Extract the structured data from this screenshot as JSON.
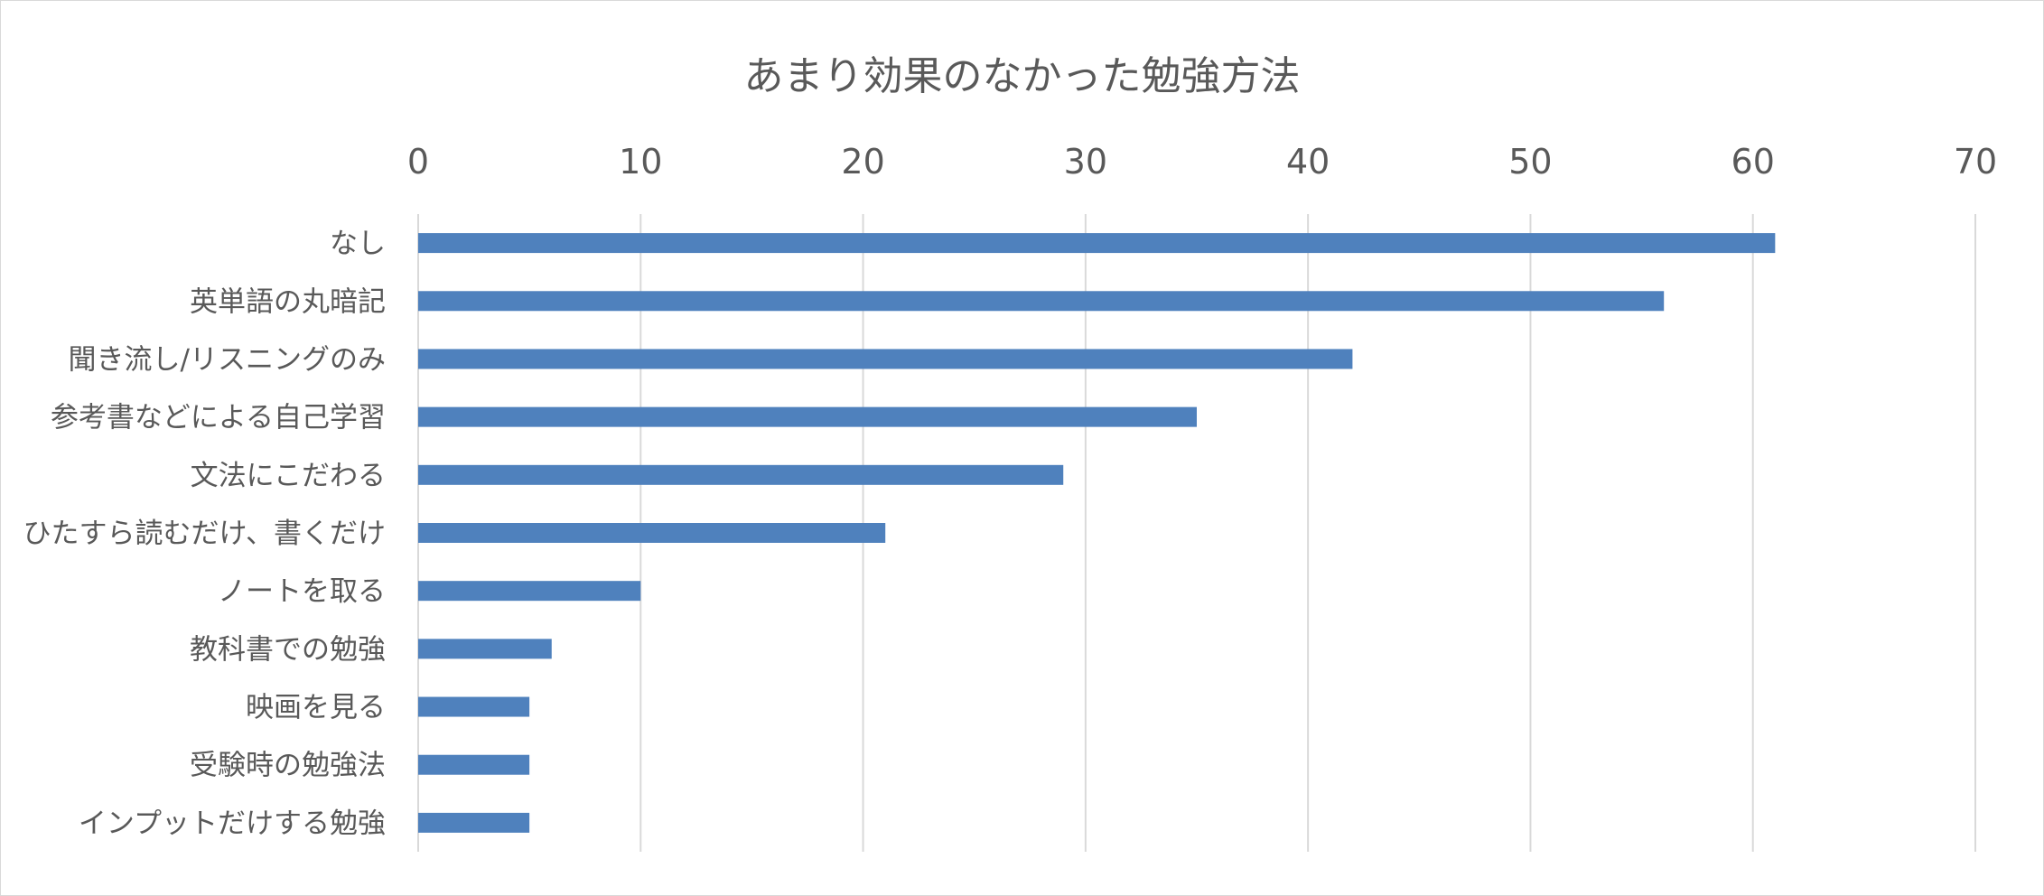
{
  "chart_data": {
    "type": "bar",
    "orientation": "horizontal",
    "title": "あまり効果のなかった勉強方法",
    "xlabel": "",
    "ylabel": "",
    "categories": [
      "なし",
      "英単語の丸暗記",
      "聞き流し/リスニングのみ",
      "参考書などによる自己学習",
      "文法にこだわる",
      "ひたすら読むだけ、書くだけ",
      "ノートを取る",
      "教科書での勉強",
      "映画を見る",
      "受験時の勉強法",
      "インプットだけする勉強"
    ],
    "values": [
      61,
      56,
      42,
      35,
      29,
      21,
      10,
      6,
      5,
      5,
      5
    ],
    "xlim": [
      0,
      70
    ],
    "ticks": [
      "0",
      "10",
      "20",
      "30",
      "40",
      "50",
      "60",
      "70"
    ],
    "axis_position": "top",
    "grid": true,
    "legend": "none",
    "colors": {
      "bar": "#4f81bd",
      "grid": "#d9d9d9",
      "text": "#595959"
    }
  }
}
